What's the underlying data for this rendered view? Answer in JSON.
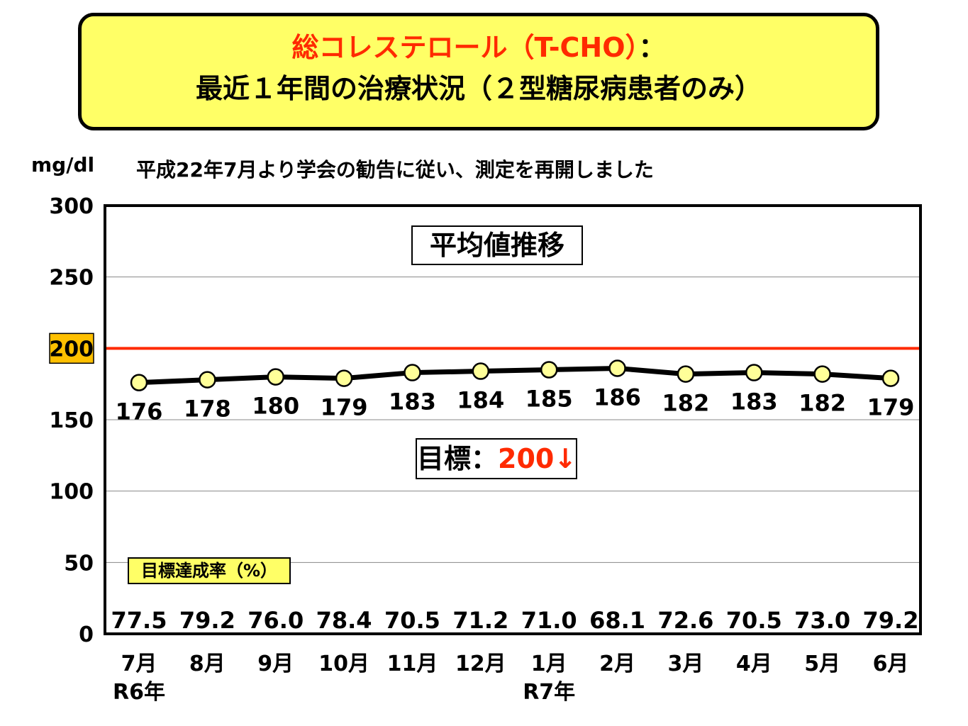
{
  "header": {
    "title_red": "総コレステロール（T-CHO）",
    "title_colon": "：",
    "subtitle": "最近１年間の治療状況（２型糖尿病患者のみ）"
  },
  "note": "平成22年7月より学会の勧告に従い、測定を再開しました",
  "legend": {
    "title": "平均値推移"
  },
  "target": {
    "label": "目標：",
    "value": "200↓"
  },
  "achievement": {
    "label": "目標達成率（%）",
    "values": [
      "77.5",
      "79.2",
      "76.0",
      "78.4",
      "70.5",
      "71.2",
      "71.0",
      "68.1",
      "72.6",
      "70.5",
      "73.0",
      "79.2"
    ]
  },
  "colors": {
    "title_bg": "#ffff66",
    "title_accent": "#ff2a00",
    "target_line": "#ff2a00",
    "marker_fill": "#ffff99",
    "highlight_tick_bg": "#ffc000"
  },
  "chart_data": {
    "type": "line",
    "ylabel": "mg/dl",
    "ylim": [
      0,
      300
    ],
    "yticks": [
      "0",
      "50",
      "100",
      "150",
      "200",
      "250",
      "300"
    ],
    "highlight_tick": "200",
    "categories": [
      "7月",
      "8月",
      "9月",
      "10月",
      "11月",
      "12月",
      "1月",
      "2月",
      "3月",
      "4月",
      "5月",
      "6月"
    ],
    "year_labels": [
      {
        "index": 0,
        "label": "R6年"
      },
      {
        "index": 6,
        "label": "R7年"
      }
    ],
    "series": [
      {
        "values": [
          176,
          178,
          180,
          179,
          183,
          184,
          185,
          186,
          182,
          183,
          182,
          179
        ]
      }
    ],
    "target_line": 200,
    "grid": true
  }
}
